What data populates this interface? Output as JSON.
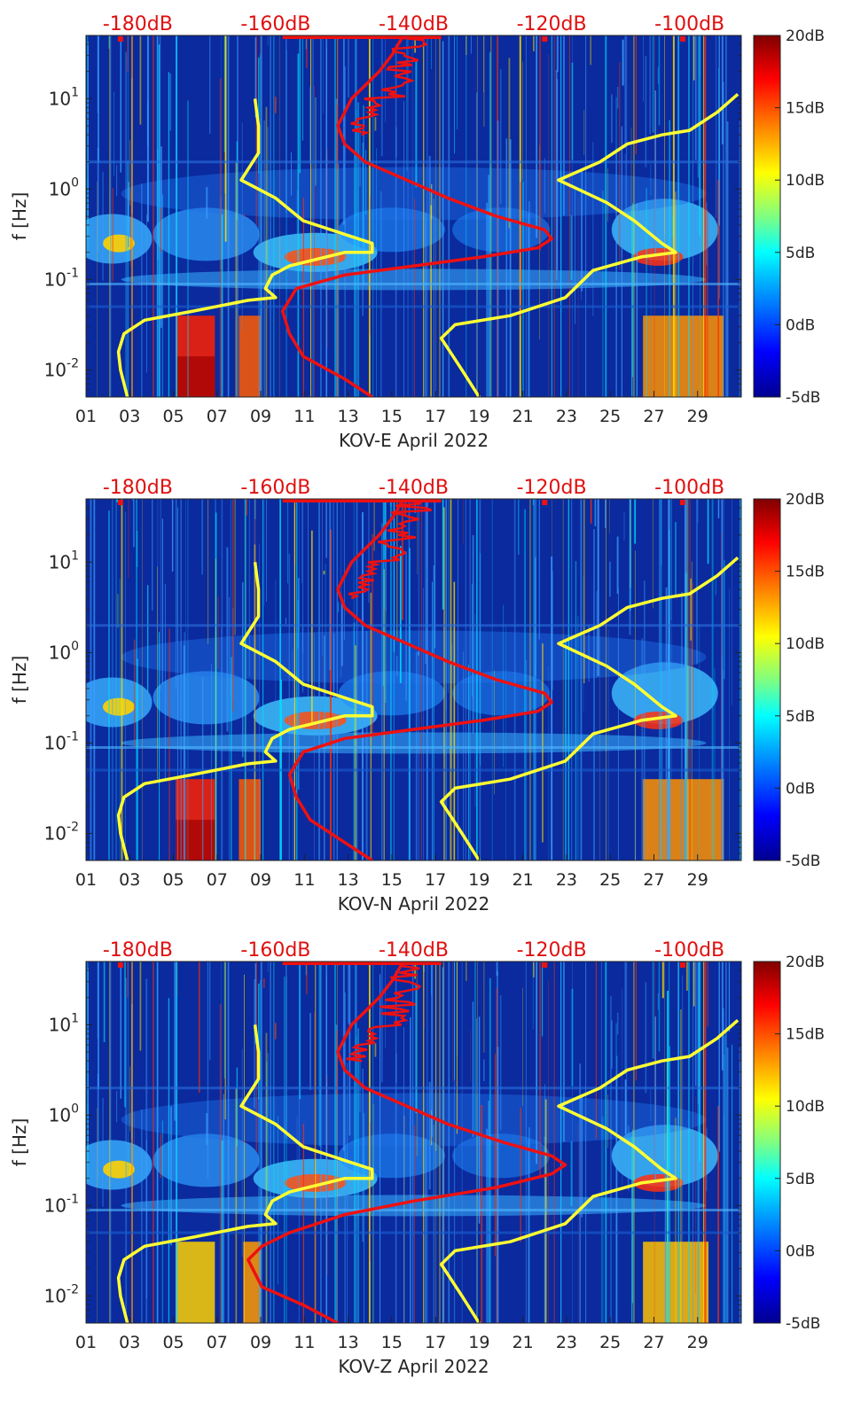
{
  "colorbar": {
    "tick_labels": [
      "20dB",
      "15dB",
      "10dB",
      "5dB",
      "0dB",
      "-5dB"
    ],
    "range_db": [
      -5,
      20
    ],
    "colors": [
      "#00008f",
      "#0000ff",
      "#00a0ff",
      "#00ffff",
      "#80ff80",
      "#ffff00",
      "#ff8000",
      "#ff0000",
      "#800000"
    ]
  },
  "colors": {
    "background": "#0a2a9e",
    "low_noise_model": "#ffff33",
    "median_psd": "#ee1111",
    "top_axis_text": "#e01010"
  },
  "chart_data": [
    {
      "type": "heatmap",
      "station": "KOV-E",
      "xlabel": "KOV-E April 2022",
      "ylabel": "f [Hz]",
      "x_ticks": [
        "01",
        "03",
        "05",
        "07",
        "09",
        "11",
        "13",
        "15",
        "17",
        "19",
        "21",
        "23",
        "25",
        "27",
        "29"
      ],
      "x_range_days": [
        1,
        31
      ],
      "y_ticks": [
        "10^1",
        "10^0",
        "10^-1",
        "10^-2"
      ],
      "y_range_log10_hz": [
        -2.3,
        1.7
      ],
      "top_axis_labels": [
        "-180dB",
        "-160dB",
        "-140dB",
        "-120dB",
        "-100dB"
      ],
      "top_axis_range_db": [
        -187.5,
        -92.5
      ],
      "series": [
        {
          "name": "noise model",
          "color": "#ffff33",
          "points_db_logf": [
            [
              -181.5,
              -2.3
            ],
            [
              -182.5,
              -2.0
            ],
            [
              -182.8,
              -1.8
            ],
            [
              -182,
              -1.6
            ],
            [
              -179,
              -1.45
            ],
            [
              -172,
              -1.35
            ],
            [
              -164,
              -1.23
            ],
            [
              -160,
              -1.2
            ],
            [
              -161.5,
              -1.1
            ],
            [
              -160.5,
              -0.95
            ],
            [
              -158,
              -0.85
            ],
            [
              -150,
              -0.7
            ],
            [
              -146,
              -0.7
            ],
            [
              -146,
              -0.6
            ],
            [
              -150,
              -0.5
            ],
            [
              -156,
              -0.35
            ],
            [
              -160,
              -0.1
            ],
            [
              -165,
              0.1
            ],
            [
              -162.5,
              0.4
            ],
            [
              -162.5,
              0.7
            ],
            [
              -163,
              1.0
            ]
          ]
        },
        {
          "name": "noise model high",
          "color": "#ffff33",
          "points_db_logf": [
            [
              -130.5,
              -2.3
            ],
            [
              -133,
              -2.0
            ],
            [
              -136,
              -1.65
            ],
            [
              -134,
              -1.5
            ],
            [
              -126,
              -1.4
            ],
            [
              -118,
              -1.2
            ],
            [
              -114,
              -0.9
            ],
            [
              -107,
              -0.75
            ],
            [
              -102,
              -0.7
            ],
            [
              -104,
              -0.6
            ],
            [
              -108,
              -0.35
            ],
            [
              -112,
              -0.15
            ],
            [
              -119,
              0.1
            ],
            [
              -113,
              0.3
            ],
            [
              -109,
              0.5
            ],
            [
              -104,
              0.6
            ],
            [
              -100,
              0.65
            ],
            [
              -96,
              0.85
            ],
            [
              -93,
              1.05
            ]
          ]
        },
        {
          "name": "median PSD",
          "color": "#ee1111",
          "points_db_logf": [
            [
              -146,
              -2.3
            ],
            [
              -150,
              -2.1
            ],
            [
              -156,
              -1.85
            ],
            [
              -158,
              -1.6
            ],
            [
              -159,
              -1.35
            ],
            [
              -157,
              -1.1
            ],
            [
              -150,
              -0.95
            ],
            [
              -140,
              -0.85
            ],
            [
              -130,
              -0.75
            ],
            [
              -122,
              -0.65
            ],
            [
              -120,
              -0.55
            ],
            [
              -121,
              -0.45
            ],
            [
              -128,
              -0.3
            ],
            [
              -135,
              -0.1
            ],
            [
              -141,
              0.1
            ],
            [
              -147,
              0.3
            ],
            [
              -150,
              0.5
            ],
            [
              -151,
              0.7
            ],
            [
              -149,
              1.0
            ],
            [
              -145,
              1.3
            ],
            [
              -143,
              1.5
            ],
            [
              -141.5,
              1.7
            ]
          ]
        }
      ]
    },
    {
      "type": "heatmap",
      "station": "KOV-N",
      "xlabel": "KOV-N April 2022",
      "ylabel": "f [Hz]",
      "x_ticks": [
        "01",
        "03",
        "05",
        "07",
        "09",
        "11",
        "13",
        "15",
        "17",
        "19",
        "21",
        "23",
        "25",
        "27",
        "29"
      ],
      "x_range_days": [
        1,
        31
      ],
      "y_ticks": [
        "10^1",
        "10^0",
        "10^-1",
        "10^-2"
      ],
      "y_range_log10_hz": [
        -2.3,
        1.7
      ],
      "top_axis_labels": [
        "-180dB",
        "-160dB",
        "-140dB",
        "-120dB",
        "-100dB"
      ],
      "top_axis_range_db": [
        -187.5,
        -92.5
      ],
      "series": [
        {
          "name": "noise model",
          "color": "#ffff33",
          "points_db_logf": [
            [
              -181.5,
              -2.3
            ],
            [
              -182.5,
              -2.0
            ],
            [
              -182.8,
              -1.8
            ],
            [
              -182,
              -1.6
            ],
            [
              -179,
              -1.45
            ],
            [
              -172,
              -1.35
            ],
            [
              -164,
              -1.23
            ],
            [
              -160,
              -1.2
            ],
            [
              -161.5,
              -1.1
            ],
            [
              -160.5,
              -0.95
            ],
            [
              -158,
              -0.85
            ],
            [
              -150,
              -0.7
            ],
            [
              -146,
              -0.7
            ],
            [
              -146,
              -0.6
            ],
            [
              -150,
              -0.5
            ],
            [
              -156,
              -0.35
            ],
            [
              -160,
              -0.1
            ],
            [
              -165,
              0.1
            ],
            [
              -162.5,
              0.4
            ],
            [
              -162.5,
              0.7
            ],
            [
              -163,
              1.0
            ]
          ]
        },
        {
          "name": "noise model high",
          "color": "#ffff33",
          "points_db_logf": [
            [
              -130.5,
              -2.3
            ],
            [
              -133,
              -2.0
            ],
            [
              -136,
              -1.65
            ],
            [
              -134,
              -1.5
            ],
            [
              -126,
              -1.4
            ],
            [
              -118,
              -1.2
            ],
            [
              -114,
              -0.9
            ],
            [
              -107,
              -0.75
            ],
            [
              -102,
              -0.7
            ],
            [
              -104,
              -0.6
            ],
            [
              -108,
              -0.35
            ],
            [
              -112,
              -0.15
            ],
            [
              -119,
              0.1
            ],
            [
              -113,
              0.3
            ],
            [
              -109,
              0.5
            ],
            [
              -104,
              0.6
            ],
            [
              -100,
              0.65
            ],
            [
              -96,
              0.85
            ],
            [
              -93,
              1.05
            ]
          ]
        },
        {
          "name": "median PSD",
          "color": "#ee1111",
          "points_db_logf": [
            [
              -146,
              -2.3
            ],
            [
              -150,
              -2.1
            ],
            [
              -155,
              -1.85
            ],
            [
              -157,
              -1.6
            ],
            [
              -158,
              -1.35
            ],
            [
              -156,
              -1.1
            ],
            [
              -150,
              -0.95
            ],
            [
              -140,
              -0.85
            ],
            [
              -130,
              -0.75
            ],
            [
              -122,
              -0.65
            ],
            [
              -120,
              -0.55
            ],
            [
              -121,
              -0.45
            ],
            [
              -128,
              -0.3
            ],
            [
              -135,
              -0.1
            ],
            [
              -141,
              0.1
            ],
            [
              -147,
              0.3
            ],
            [
              -150,
              0.5
            ],
            [
              -151,
              0.7
            ],
            [
              -149,
              1.0
            ],
            [
              -145,
              1.3
            ],
            [
              -143,
              1.5
            ],
            [
              -141.5,
              1.7
            ]
          ]
        }
      ]
    },
    {
      "type": "heatmap",
      "station": "KOV-Z",
      "xlabel": "KOV-Z April 2022",
      "ylabel": "f [Hz]",
      "x_ticks": [
        "01",
        "03",
        "05",
        "07",
        "09",
        "11",
        "13",
        "15",
        "17",
        "19",
        "21",
        "23",
        "25",
        "27",
        "29"
      ],
      "x_range_days": [
        1,
        31
      ],
      "y_ticks": [
        "10^1",
        "10^0",
        "10^-1",
        "10^-2"
      ],
      "y_range_log10_hz": [
        -2.3,
        1.7
      ],
      "top_axis_labels": [
        "-180dB",
        "-160dB",
        "-140dB",
        "-120dB",
        "-100dB"
      ],
      "top_axis_range_db": [
        -187.5,
        -92.5
      ],
      "series": [
        {
          "name": "noise model",
          "color": "#ffff33",
          "points_db_logf": [
            [
              -181.5,
              -2.3
            ],
            [
              -182.5,
              -2.0
            ],
            [
              -182.8,
              -1.8
            ],
            [
              -182,
              -1.6
            ],
            [
              -179,
              -1.45
            ],
            [
              -172,
              -1.35
            ],
            [
              -164,
              -1.23
            ],
            [
              -160,
              -1.2
            ],
            [
              -161.5,
              -1.1
            ],
            [
              -160.5,
              -0.95
            ],
            [
              -158,
              -0.85
            ],
            [
              -150,
              -0.7
            ],
            [
              -146,
              -0.7
            ],
            [
              -146,
              -0.6
            ],
            [
              -150,
              -0.5
            ],
            [
              -156,
              -0.35
            ],
            [
              -160,
              -0.1
            ],
            [
              -165,
              0.1
            ],
            [
              -162.5,
              0.4
            ],
            [
              -162.5,
              0.7
            ],
            [
              -163,
              1.0
            ]
          ]
        },
        {
          "name": "noise model high",
          "color": "#ffff33",
          "points_db_logf": [
            [
              -130.5,
              -2.3
            ],
            [
              -133,
              -2.0
            ],
            [
              -136,
              -1.65
            ],
            [
              -134,
              -1.5
            ],
            [
              -126,
              -1.4
            ],
            [
              -118,
              -1.2
            ],
            [
              -114,
              -0.9
            ],
            [
              -107,
              -0.75
            ],
            [
              -102,
              -0.7
            ],
            [
              -104,
              -0.6
            ],
            [
              -108,
              -0.35
            ],
            [
              -112,
              -0.15
            ],
            [
              -119,
              0.1
            ],
            [
              -113,
              0.3
            ],
            [
              -109,
              0.5
            ],
            [
              -104,
              0.6
            ],
            [
              -100,
              0.65
            ],
            [
              -96,
              0.85
            ],
            [
              -93,
              1.05
            ]
          ]
        },
        {
          "name": "median PSD",
          "color": "#ee1111",
          "points_db_logf": [
            [
              -151,
              -2.3
            ],
            [
              -156,
              -2.1
            ],
            [
              -162,
              -1.9
            ],
            [
              -164,
              -1.6
            ],
            [
              -162,
              -1.45
            ],
            [
              -158,
              -1.3
            ],
            [
              -150,
              -1.1
            ],
            [
              -140,
              -0.95
            ],
            [
              -128,
              -0.8
            ],
            [
              -120,
              -0.65
            ],
            [
              -118,
              -0.55
            ],
            [
              -120,
              -0.45
            ],
            [
              -127,
              -0.3
            ],
            [
              -135,
              -0.1
            ],
            [
              -141,
              0.1
            ],
            [
              -147,
              0.3
            ],
            [
              -150,
              0.5
            ],
            [
              -151,
              0.7
            ],
            [
              -149,
              1.0
            ],
            [
              -145,
              1.3
            ],
            [
              -143,
              1.5
            ],
            [
              -141.5,
              1.7
            ]
          ]
        }
      ]
    }
  ]
}
